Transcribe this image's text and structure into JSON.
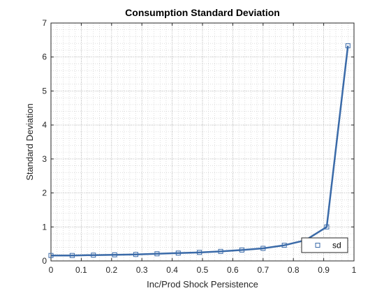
{
  "chart_data": {
    "type": "line",
    "title": "Consumption Standard Deviation",
    "xlabel": "Inc/Prod Shock Persistence",
    "ylabel": "Standard Deviation",
    "xlim": [
      0,
      1
    ],
    "ylim": [
      0,
      7
    ],
    "xticks": [
      0,
      0.1,
      0.2,
      0.3,
      0.4,
      0.5,
      0.6,
      0.7,
      0.8,
      0.9,
      1
    ],
    "xtick_labels": [
      "0",
      "0.1",
      "0.2",
      "0.3",
      "0.4",
      "0.5",
      "0.6",
      "0.7",
      "0.8",
      "0.9",
      "1"
    ],
    "yticks": [
      0,
      1,
      2,
      3,
      4,
      5,
      6,
      7
    ],
    "ytick_labels": [
      "0",
      "1",
      "2",
      "3",
      "4",
      "5",
      "6",
      "7"
    ],
    "grid": "minor-dotted",
    "legend": "bottom-right",
    "series": [
      {
        "name": "sd",
        "color": "#3a6aa8",
        "marker": "square",
        "x": [
          0,
          0.07,
          0.14,
          0.21,
          0.28,
          0.35,
          0.42,
          0.49,
          0.56,
          0.63,
          0.7,
          0.77,
          0.84,
          0.91,
          0.98
        ],
        "y": [
          0.16,
          0.16,
          0.17,
          0.18,
          0.19,
          0.21,
          0.23,
          0.25,
          0.28,
          0.32,
          0.37,
          0.46,
          0.61,
          1.0,
          6.33
        ]
      }
    ]
  }
}
